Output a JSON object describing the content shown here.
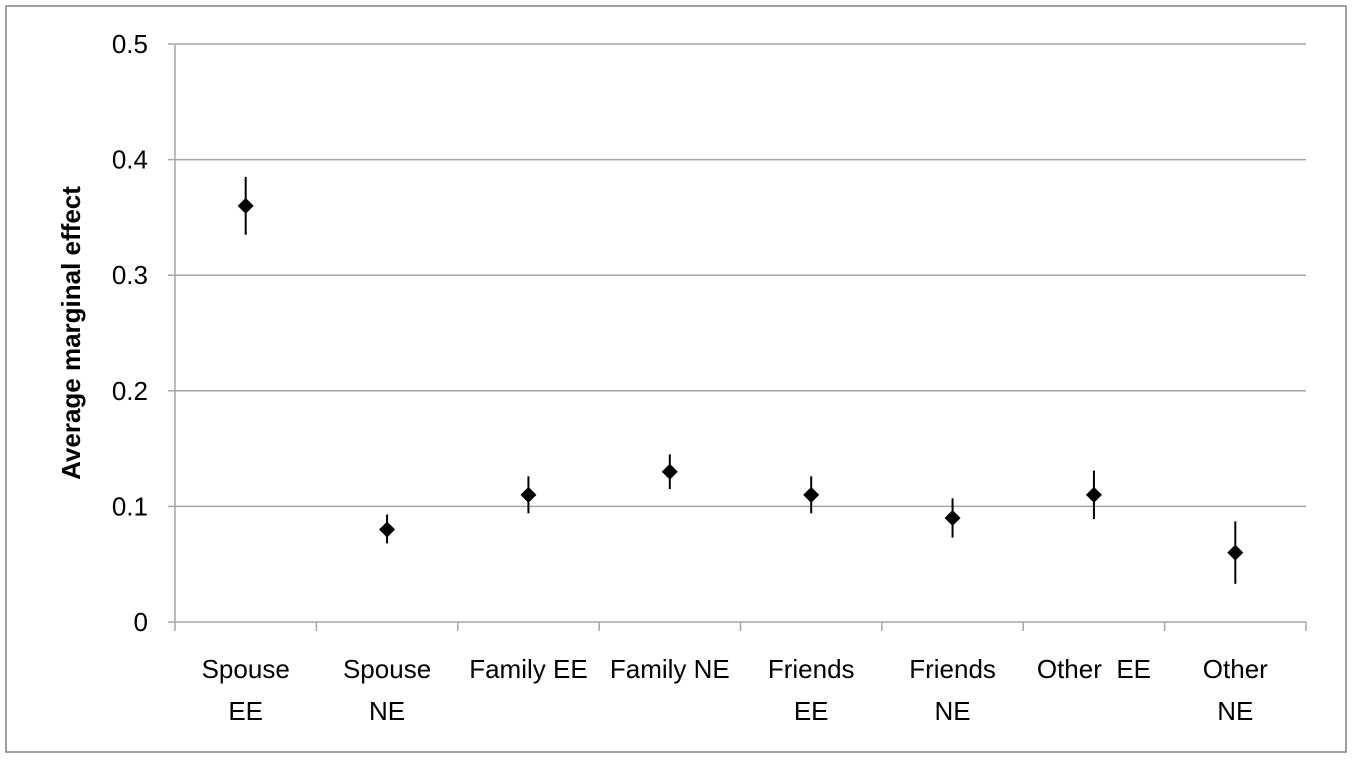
{
  "chart_data": {
    "type": "scatter",
    "title": "",
    "xlabel": "",
    "ylabel": "Average marginal effect",
    "ylim": [
      0,
      0.5
    ],
    "yticks": [
      "0",
      "0.1",
      "0.2",
      "0.3",
      "0.4",
      "0.5"
    ],
    "grid": true,
    "legend": "none",
    "marker": "diamond",
    "marker_color": "#000000",
    "gridline_color": "#a6a6a6",
    "border_color": "#808080",
    "categories": [
      [
        "Spouse",
        "EE"
      ],
      [
        "Spouse",
        "NE"
      ],
      [
        "Family EE"
      ],
      [
        "Family NE"
      ],
      [
        "Friends",
        "EE"
      ],
      [
        "Friends",
        "NE"
      ],
      [
        "Other  EE"
      ],
      [
        "Other",
        "NE"
      ]
    ],
    "values": [
      0.36,
      0.08,
      0.11,
      0.13,
      0.11,
      0.09,
      0.11,
      0.06
    ],
    "error_low": [
      0.335,
      0.068,
      0.094,
      0.115,
      0.094,
      0.073,
      0.089,
      0.033
    ],
    "error_high": [
      0.385,
      0.093,
      0.126,
      0.145,
      0.126,
      0.107,
      0.131,
      0.087
    ]
  }
}
